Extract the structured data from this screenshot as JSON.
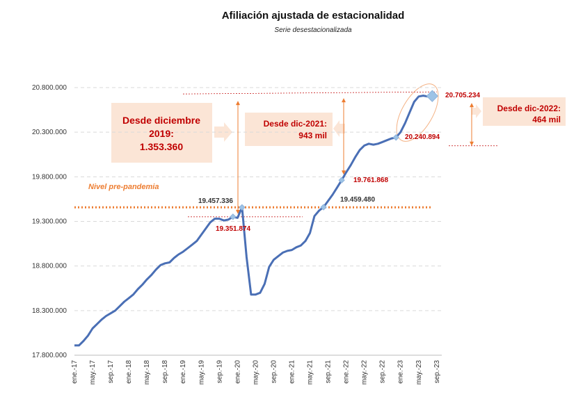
{
  "chart_data": {
    "type": "line",
    "title": "Afiliación ajustada de estacionalidad",
    "subtitle": "Serie desestacionalizada",
    "categories": [
      "ene.-17",
      null,
      null,
      null,
      "may.-17",
      null,
      null,
      null,
      "sep.-17",
      null,
      null,
      null,
      "ene.-18",
      null,
      null,
      null,
      "may.-18",
      null,
      null,
      null,
      "sep.-18",
      null,
      null,
      null,
      "ene.-19",
      null,
      null,
      null,
      "may.-19",
      null,
      null,
      null,
      "sep.-19",
      null,
      null,
      null,
      "ene.-20",
      null,
      null,
      null,
      "may.-20",
      null,
      null,
      null,
      "sep.-20",
      null,
      null,
      null,
      "ene.-21",
      null,
      null,
      null,
      "may.-21",
      null,
      null,
      null,
      "sep.-21",
      null,
      null,
      null,
      "ene.-22",
      null,
      null,
      null,
      "may.-22",
      null,
      null,
      null,
      "sep.-22",
      null,
      null,
      null,
      "ene.-23",
      null,
      null,
      null,
      "may.-23",
      null,
      null,
      null,
      "sep.-23"
    ],
    "series": [
      {
        "name": "Afiliación",
        "color": "#4a6fb5",
        "values": [
          17910000,
          17910000,
          17960000,
          18020000,
          18100000,
          18150000,
          18200000,
          18240000,
          18270000,
          18300000,
          18350000,
          18400000,
          18440000,
          18480000,
          18540000,
          18590000,
          18650000,
          18700000,
          18760000,
          18810000,
          18830000,
          18840000,
          18890000,
          18930000,
          18960000,
          19000000,
          19040000,
          19080000,
          19150000,
          19220000,
          19290000,
          19330000,
          19330000,
          19310000,
          19320000,
          19351874,
          19340000,
          19457336,
          18900000,
          18480000,
          18480000,
          18500000,
          18600000,
          18790000,
          18870000,
          18910000,
          18950000,
          18970000,
          18980000,
          19010000,
          19030000,
          19080000,
          19170000,
          19360000,
          19420000,
          19459480,
          19530000,
          19600000,
          19680000,
          19761868,
          19850000,
          19930000,
          20020000,
          20100000,
          20150000,
          20170000,
          20160000,
          20170000,
          20190000,
          20210000,
          20230000,
          20240894,
          20300000,
          20400000,
          20520000,
          20640000,
          20700000,
          20710000,
          20700000,
          20705234,
          null
        ],
        "value_labels": [
          null,
          null,
          null,
          null,
          null,
          null,
          null,
          null,
          null,
          null,
          null,
          null,
          null,
          null,
          null,
          null,
          null,
          null,
          null,
          null,
          null,
          null,
          null,
          null,
          null,
          null,
          null,
          null,
          null,
          null,
          null,
          null,
          null,
          null,
          null,
          "19.351.874",
          null,
          "19.457.336",
          null,
          null,
          null,
          null,
          null,
          null,
          null,
          null,
          null,
          null,
          null,
          null,
          null,
          null,
          null,
          null,
          null,
          "19.459.480",
          null,
          null,
          null,
          "19.761.868",
          null,
          null,
          null,
          null,
          null,
          null,
          null,
          null,
          null,
          null,
          null,
          "20.240.894",
          null,
          null,
          null,
          null,
          null,
          null,
          null,
          "20.705.234",
          null
        ]
      }
    ],
    "ylim": [
      17800000,
      20800000
    ],
    "yticks": [
      {
        "value": 17800000,
        "label": "17.800.000"
      },
      {
        "value": 18300000,
        "label": "18.300.000"
      },
      {
        "value": 18800000,
        "label": "18.800.000"
      },
      {
        "value": 19300000,
        "label": "19.300.000"
      },
      {
        "value": 19800000,
        "label": "19.800.000"
      },
      {
        "value": 20300000,
        "label": "20.300.000"
      },
      {
        "value": 20800000,
        "label": "20.800.000"
      }
    ],
    "grid": true,
    "reference_line": {
      "label": "Nivel pre-pandemia",
      "value": 19457336
    },
    "annotations": [
      {
        "lines": [
          "Desde diciembre",
          "2019:",
          "1.353.360"
        ]
      },
      {
        "lines": [
          "Desde dic-2021:",
          "943 mil"
        ]
      },
      {
        "lines": [
          "Desde dic-2022:",
          "464 mil"
        ]
      }
    ]
  }
}
